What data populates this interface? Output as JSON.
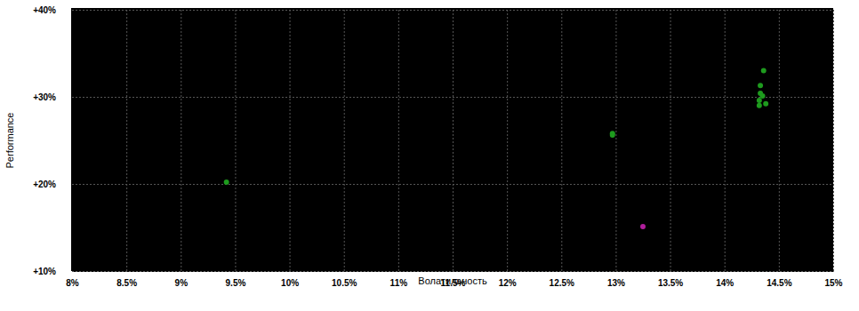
{
  "chart_data": {
    "type": "scatter",
    "x_label": "Волатильность",
    "y_label": "Performance",
    "x": [
      9.42,
      12.97,
      12.97,
      14.36,
      14.33,
      14.33,
      14.35,
      14.32,
      14.38,
      14.32,
      13.25
    ],
    "values": [
      20.2,
      25.8,
      25.6,
      33.0,
      31.3,
      30.4,
      30.1,
      29.6,
      29.2,
      29.0,
      15.1
    ],
    "colors": [
      "#1e9b1e",
      "#1e9b1e",
      "#1e9b1e",
      "#1e9b1e",
      "#1e9b1e",
      "#1e9b1e",
      "#1e9b1e",
      "#1e9b1e",
      "#1e9b1e",
      "#1e9b1e",
      "#b01e9b"
    ],
    "marker": "circle",
    "xlim": [
      8,
      15
    ],
    "ylim": [
      10,
      40
    ],
    "xticks": [
      {
        "value": 8,
        "label": "8%"
      },
      {
        "value": 8.5,
        "label": "8.5%"
      },
      {
        "value": 9,
        "label": "9%"
      },
      {
        "value": 9.5,
        "label": "9.5%"
      },
      {
        "value": 10,
        "label": "10%"
      },
      {
        "value": 10.5,
        "label": "10.5%"
      },
      {
        "value": 11,
        "label": "11%"
      },
      {
        "value": 11.5,
        "label": "11.5%"
      },
      {
        "value": 12,
        "label": "12%"
      },
      {
        "value": 12.5,
        "label": "12.5%"
      },
      {
        "value": 13,
        "label": "13%"
      },
      {
        "value": 13.5,
        "label": "13.5%"
      },
      {
        "value": 14,
        "label": "14%"
      },
      {
        "value": 14.5,
        "label": "14.5%"
      },
      {
        "value": 15,
        "label": "15%"
      }
    ],
    "yticks": [
      {
        "value": 10,
        "label": "+10%"
      },
      {
        "value": 20,
        "label": "+20%"
      },
      {
        "value": 30,
        "label": "+30%"
      },
      {
        "value": 40,
        "label": "+40%"
      }
    ],
    "grid": true
  }
}
